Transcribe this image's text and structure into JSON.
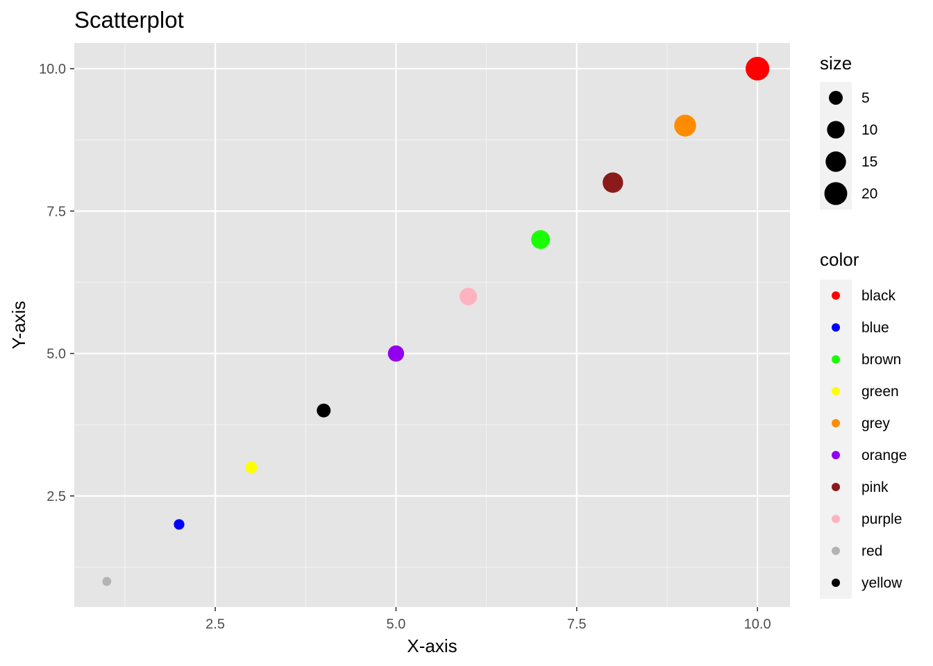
{
  "chart_data": {
    "type": "scatter",
    "title": "Scatterplot",
    "xlabel": "X-axis",
    "ylabel": "Y-axis",
    "xlim": [
      0.55,
      10.45
    ],
    "ylim": [
      0.55,
      10.45
    ],
    "x_ticks": [
      2.5,
      5.0,
      7.5,
      10.0
    ],
    "x_tick_labels": [
      "2.5",
      "5.0",
      "7.5",
      "10.0"
    ],
    "y_ticks": [
      2.5,
      5.0,
      7.5,
      10.0
    ],
    "y_tick_labels": [
      "2.5",
      "5.0",
      "7.5",
      "10.0"
    ],
    "grid": true,
    "panel_background": "#e5e5e5",
    "points": [
      {
        "x": 1,
        "y": 1,
        "size": 1,
        "color": "#b3b3b3"
      },
      {
        "x": 2,
        "y": 2,
        "size": 2,
        "color": "#0000ff"
      },
      {
        "x": 3,
        "y": 3,
        "size": 3,
        "color": "#ffff00"
      },
      {
        "x": 4,
        "y": 4,
        "size": 5,
        "color": "#000000"
      },
      {
        "x": 5,
        "y": 5,
        "size": 8,
        "color": "#9300ef"
      },
      {
        "x": 6,
        "y": 6,
        "size": 10,
        "color": "#ffb3c1"
      },
      {
        "x": 7,
        "y": 7,
        "size": 12,
        "color": "#1aff00"
      },
      {
        "x": 8,
        "y": 8,
        "size": 15,
        "color": "#8b1a1a"
      },
      {
        "x": 9,
        "y": 9,
        "size": 18,
        "color": "#ff8c00"
      },
      {
        "x": 10,
        "y": 10,
        "size": 22,
        "color": "#ff0000"
      }
    ],
    "legend_placement": "right",
    "legend_size": {
      "title": "size",
      "entries": [
        {
          "value": 5,
          "label": "5"
        },
        {
          "value": 10,
          "label": "10"
        },
        {
          "value": 15,
          "label": "15"
        },
        {
          "value": 20,
          "label": "20"
        }
      ]
    },
    "legend_color": {
      "title": "color",
      "entries": [
        {
          "label": "black",
          "color": "#ff0000"
        },
        {
          "label": "blue",
          "color": "#0000ff"
        },
        {
          "label": "brown",
          "color": "#1aff00"
        },
        {
          "label": "green",
          "color": "#ffff00"
        },
        {
          "label": "grey",
          "color": "#ff8c00"
        },
        {
          "label": "orange",
          "color": "#9300ef"
        },
        {
          "label": "pink",
          "color": "#8b1a1a"
        },
        {
          "label": "purple",
          "color": "#ffb3c1"
        },
        {
          "label": "red",
          "color": "#b3b3b3"
        },
        {
          "label": "yellow",
          "color": "#000000"
        }
      ]
    }
  }
}
